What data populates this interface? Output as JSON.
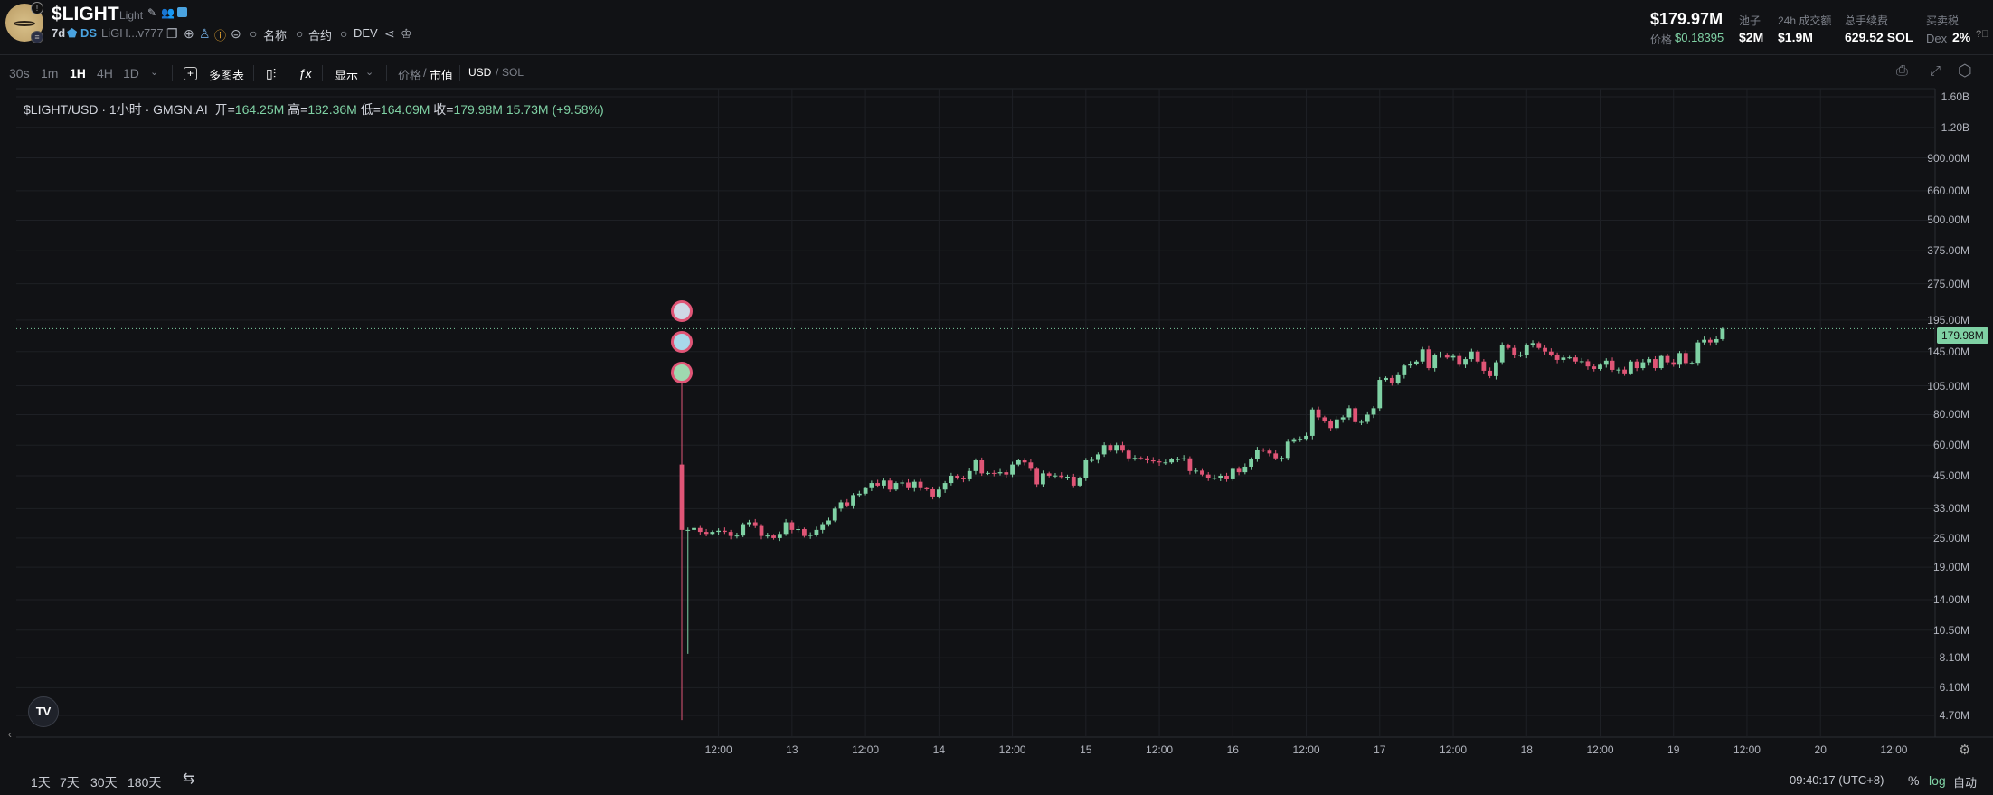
{
  "header": {
    "symbol": "$LIGHT",
    "name": "Light",
    "age": "7d",
    "ds_label": "DS",
    "address": "LiGH...v777",
    "search_name": "名称",
    "search_contract": "合约",
    "search_dev": "DEV",
    "market_cap": "$179.97M",
    "price_label": "价格",
    "price": "$0.18395",
    "stats": [
      {
        "label": "池子",
        "value": "$2M"
      },
      {
        "label": "24h 成交额",
        "value": "$1.9M"
      },
      {
        "label": "总手续费",
        "value": "629.52 SOL"
      }
    ],
    "tax_label": "买卖税",
    "tax_prefix": "Dex",
    "tax_value": "2%"
  },
  "toolbar": {
    "intervals": [
      "30s",
      "1m",
      "1H",
      "4H",
      "1D"
    ],
    "active_interval": "1H",
    "multi_chart": "多图表",
    "display": "显示",
    "price_toggle": "价格",
    "mcap_toggle": "市值",
    "usd": "USD",
    "sol": "SOL"
  },
  "legend": {
    "title": "$LIGHT/USD · 1小时 · GMGN.AI",
    "open_label": "开=",
    "open": "164.25M",
    "high_label": "高=",
    "high": "182.36M",
    "low_label": "低=",
    "low": "164.09M",
    "close_label": "收=",
    "close": "179.98M",
    "volume": "15.73M",
    "change": "(+9.58%)"
  },
  "last_price_label": "179.98M",
  "footer": {
    "ranges": [
      "1天",
      "7天",
      "30天",
      "180天"
    ],
    "time": "09:40:17 (UTC+8)",
    "percent": "%",
    "log": "log",
    "auto": "自动"
  },
  "colors": {
    "up": "#7fd1a4",
    "down": "#e05576",
    "background": "#111215",
    "grid": "#1e2025"
  },
  "chart_data": {
    "type": "candlestick",
    "interval": "1H",
    "y_scale": "log",
    "ylim": [
      "4.70M",
      "1.60B"
    ],
    "y_ticks": [
      "1.60B",
      "1.20B",
      "900.00M",
      "660.00M",
      "500.00M",
      "375.00M",
      "275.00M",
      "195.00M",
      "145.00M",
      "105.00M",
      "80.00M",
      "60.00M",
      "45.00M",
      "33.00M",
      "25.00M",
      "19.00M",
      "14.00M",
      "10.50M",
      "8.10M",
      "6.10M",
      "4.70M"
    ],
    "x_ticks": [
      "12:00",
      "13",
      "12:00",
      "14",
      "12:00",
      "15",
      "12:00",
      "16",
      "12:00",
      "17",
      "12:00",
      "18",
      "12:00",
      "19",
      "12:00",
      "20",
      "12:00"
    ],
    "first_candle_time": "12 06:00",
    "first_candle": {
      "open": 50,
      "high": 130,
      "low": 4.5,
      "close": 27
    },
    "second_candle_low": 8.4,
    "closes_millions": [
      27,
      27,
      27.5,
      26.5,
      26,
      26.5,
      26.8,
      26.5,
      25.5,
      25.6,
      28.5,
      29,
      28,
      25.5,
      25.6,
      25,
      26,
      29,
      27,
      27.2,
      25.5,
      25.8,
      27,
      28.5,
      29.5,
      33,
      35,
      34,
      37.5,
      38,
      40,
      42,
      41,
      43,
      39.5,
      42,
      42.2,
      40,
      42.5,
      40,
      39.6,
      37,
      39.5,
      42,
      45,
      44,
      43.5,
      47,
      52,
      46,
      46.2,
      46,
      46.5,
      45.5,
      50,
      52,
      51,
      48,
      41.5,
      46,
      45,
      45.1,
      44.5,
      44.6,
      41,
      44,
      52,
      52.2,
      55,
      60,
      57,
      60,
      57,
      53,
      53.2,
      53,
      52,
      51.5,
      51,
      51,
      52.5,
      52.6,
      53,
      47,
      47.2,
      45.5,
      44,
      44.1,
      45,
      43.5,
      48,
      46.5,
      49,
      52.5,
      57.5,
      57,
      55.5,
      53,
      53.2,
      62,
      63.5,
      63.7,
      65.5,
      84,
      78,
      75,
      70.5,
      76.5,
      78,
      85,
      74.5,
      74.7,
      80,
      85,
      111,
      113,
      108,
      116,
      127,
      129,
      132,
      148,
      124,
      140,
      141,
      137,
      139,
      128,
      135,
      145,
      132,
      121,
      115,
      131,
      154,
      150,
      140,
      140.5,
      154,
      157,
      150,
      145,
      141,
      134,
      137,
      137.2,
      132,
      132.3,
      126,
      123,
      128,
      133,
      122,
      122.3,
      118,
      132,
      124,
      131,
      135,
      124,
      139,
      131,
      128,
      143,
      130,
      130.3,
      158,
      162,
      158,
      163,
      179.98
    ]
  }
}
